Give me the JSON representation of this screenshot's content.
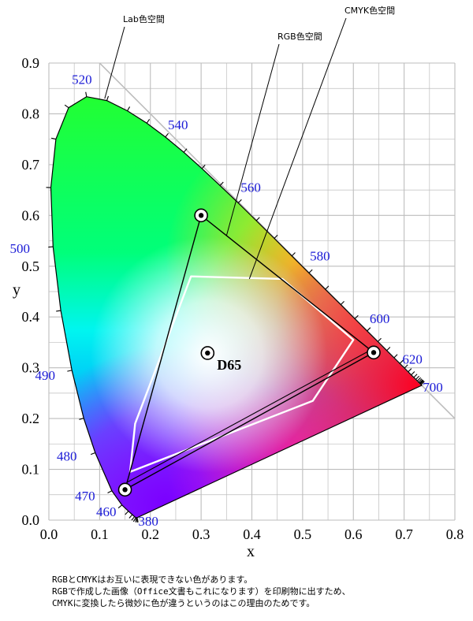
{
  "chart_data": {
    "type": "scatter",
    "title": "",
    "xlabel": "x",
    "ylabel": "y",
    "xlim": [
      0,
      0.8
    ],
    "ylim": [
      0,
      0.9
    ],
    "x_ticks": [
      "0.0",
      "0.1",
      "0.2",
      "0.3",
      "0.4",
      "0.5",
      "0.6",
      "0.7",
      "0.8"
    ],
    "y_ticks": [
      "0.0",
      "0.1",
      "0.2",
      "0.3",
      "0.4",
      "0.5",
      "0.6",
      "0.7",
      "0.8",
      "0.9"
    ],
    "grid": true,
    "spectral_locus": [
      [
        0.1741,
        0.005
      ],
      [
        0.1738,
        0.0049
      ],
      [
        0.1736,
        0.0049
      ],
      [
        0.1733,
        0.0048
      ],
      [
        0.1726,
        0.0048
      ],
      [
        0.1714,
        0.0051
      ],
      [
        0.1689,
        0.0069
      ],
      [
        0.1644,
        0.0109
      ],
      [
        0.1566,
        0.0177
      ],
      [
        0.144,
        0.0297
      ],
      [
        0.1241,
        0.0578
      ],
      [
        0.0913,
        0.1327
      ],
      [
        0.0687,
        0.2007
      ],
      [
        0.0454,
        0.295
      ],
      [
        0.0235,
        0.4127
      ],
      [
        0.0082,
        0.5384
      ],
      [
        0.0039,
        0.6548
      ],
      [
        0.0139,
        0.7502
      ],
      [
        0.0389,
        0.812
      ],
      [
        0.0743,
        0.8338
      ],
      [
        0.1142,
        0.8262
      ],
      [
        0.1547,
        0.8059
      ],
      [
        0.1929,
        0.7816
      ],
      [
        0.2296,
        0.7543
      ],
      [
        0.2658,
        0.7243
      ],
      [
        0.3016,
        0.6923
      ],
      [
        0.3373,
        0.6589
      ],
      [
        0.3731,
        0.6245
      ],
      [
        0.4087,
        0.5896
      ],
      [
        0.4441,
        0.5547
      ],
      [
        0.4788,
        0.5202
      ],
      [
        0.5125,
        0.4866
      ],
      [
        0.5448,
        0.4544
      ],
      [
        0.5752,
        0.4242
      ],
      [
        0.6029,
        0.3965
      ],
      [
        0.627,
        0.3725
      ],
      [
        0.6482,
        0.3514
      ],
      [
        0.6658,
        0.334
      ],
      [
        0.6801,
        0.3197
      ],
      [
        0.6915,
        0.3083
      ],
      [
        0.7006,
        0.2993
      ],
      [
        0.7079,
        0.292
      ],
      [
        0.714,
        0.2859
      ],
      [
        0.719,
        0.2809
      ],
      [
        0.723,
        0.277
      ],
      [
        0.726,
        0.274
      ],
      [
        0.7283,
        0.2717
      ],
      [
        0.73,
        0.27
      ],
      [
        0.7311,
        0.2689
      ],
      [
        0.732,
        0.268
      ],
      [
        0.7334,
        0.2666
      ],
      [
        0.7347,
        0.2653
      ]
    ],
    "wavelength_labels": [
      {
        "text": "380",
        "x": 0.1741,
        "y": 0.005
      },
      {
        "text": "460",
        "x": 0.144,
        "y": 0.0297
      },
      {
        "text": "470",
        "x": 0.1241,
        "y": 0.0578
      },
      {
        "text": "480",
        "x": 0.0913,
        "y": 0.1327
      },
      {
        "text": "490",
        "x": 0.0454,
        "y": 0.295
      },
      {
        "text": "500",
        "x": 0.0082,
        "y": 0.5384
      },
      {
        "text": "520",
        "x": 0.0743,
        "y": 0.8338
      },
      {
        "text": "540",
        "x": 0.2296,
        "y": 0.7543
      },
      {
        "text": "560",
        "x": 0.3731,
        "y": 0.6245
      },
      {
        "text": "580",
        "x": 0.5125,
        "y": 0.4866
      },
      {
        "text": "600",
        "x": 0.627,
        "y": 0.3725
      },
      {
        "text": "620",
        "x": 0.6915,
        "y": 0.3083
      },
      {
        "text": "700",
        "x": 0.7347,
        "y": 0.2653
      }
    ],
    "rgb_gamut": [
      [
        0.64,
        0.33
      ],
      [
        0.3,
        0.6
      ],
      [
        0.15,
        0.06
      ]
    ],
    "cmyk_gamut": [
      [
        0.28,
        0.48
      ],
      [
        0.46,
        0.475
      ],
      [
        0.6,
        0.355
      ],
      [
        0.52,
        0.235
      ],
      [
        0.16,
        0.095
      ],
      [
        0.17,
        0.19
      ]
    ],
    "white_point": {
      "label": "D65",
      "x": 0.3127,
      "y": 0.329
    },
    "annotations": [
      {
        "text": "Lab色空間",
        "point": [
          0.11,
          0.83
        ]
      },
      {
        "text": "RGB色空間",
        "point": [
          0.35,
          0.56
        ]
      },
      {
        "text": "CMYK色空間",
        "point": [
          0.395,
          0.475
        ]
      }
    ]
  },
  "caption": {
    "line1": "RGBとCMYKはお互いに表現できない色があります。",
    "line2": "RGBで作成した画像（Office文書もこれになります）を印刷物に出すため、",
    "line3": "CMYKに変換したら微妙に色が違うというのはこの理由のためです。"
  },
  "colors": {
    "grid": "#bdbdbd",
    "wavelength_label": "#1a1ad6",
    "gamut_rgb": "#000000",
    "gamut_cmyk": "#ffffff"
  }
}
